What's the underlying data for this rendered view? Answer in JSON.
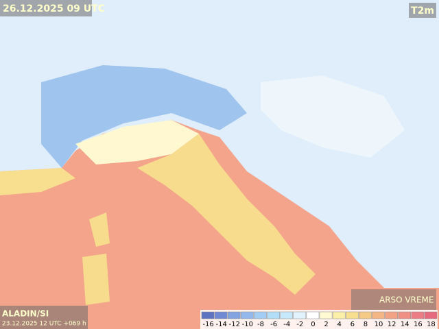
{
  "header": {
    "title": "26.12.2025 09 UTC",
    "variable": "T2m"
  },
  "footer": {
    "model": "ALADIN/SI",
    "run": "23.12.2025 12 UTC +069 h",
    "brand": "ARSO VREME"
  },
  "legend": {
    "values": [
      -16,
      -14,
      -12,
      -10,
      -8,
      -6,
      -4,
      -2,
      0,
      2,
      4,
      6,
      8,
      10,
      12,
      14,
      16,
      18
    ],
    "colors": [
      "#5f74c0",
      "#6f8ad2",
      "#82a2e0",
      "#93b9ec",
      "#a3cdf4",
      "#b3def8",
      "#c6e9fb",
      "#e3f3fd",
      "#ffffff",
      "#fffad2",
      "#fcefa8",
      "#f8df90",
      "#f5ca86",
      "#f3b684",
      "#f2a384",
      "#f09085",
      "#ec7d84",
      "#e66b7e"
    ]
  }
}
